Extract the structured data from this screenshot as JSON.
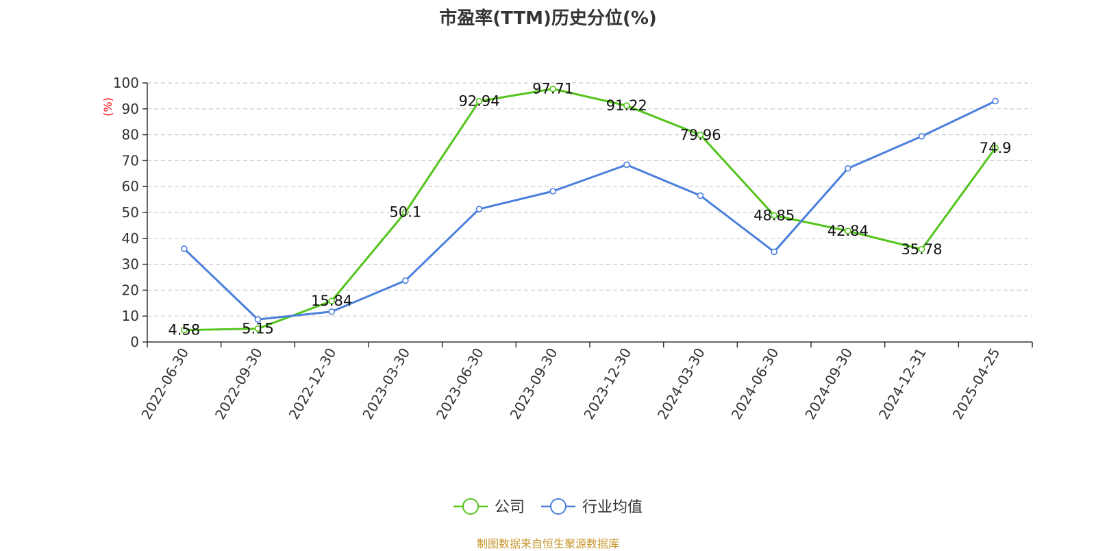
{
  "chart_data": {
    "type": "line",
    "title": "市盈率(TTM)历史分位(%)",
    "ylabel": "(%)",
    "xlabel": "",
    "ylim": [
      0,
      100
    ],
    "yticks": [
      0,
      10,
      20,
      30,
      40,
      50,
      60,
      70,
      80,
      90,
      100
    ],
    "grid": true,
    "legend_position": "bottom-center",
    "categories": [
      "2022-06-30",
      "2022-09-30",
      "2022-12-30",
      "2023-03-30",
      "2023-06-30",
      "2023-09-30",
      "2023-12-30",
      "2024-03-30",
      "2024-06-30",
      "2024-09-30",
      "2024-12-31",
      "2025-04-25"
    ],
    "series": [
      {
        "name": "公司",
        "color": "#52c41a",
        "values": [
          4.58,
          5.15,
          15.84,
          50.1,
          92.94,
          97.71,
          91.22,
          79.96,
          48.85,
          42.84,
          35.78,
          74.9
        ],
        "labels": [
          "4.58",
          "5.15",
          "15.84",
          "50.1",
          "92.94",
          "97.71",
          "91.22",
          "79.96",
          "48.85",
          "42.84",
          "35.78",
          "74.9"
        ]
      },
      {
        "name": "行业均值",
        "color": "#4a7fdc",
        "values": [
          36,
          8.7,
          11.7,
          23.7,
          51.3,
          58.2,
          68.4,
          56.5,
          34.8,
          67.0,
          79.4,
          93.0
        ]
      }
    ]
  },
  "footer": {
    "source": "制图数据来自恒生聚源数据库"
  },
  "colors": {
    "axis": "#333333",
    "grid": "#cccccc",
    "ylabel": "#ff0000",
    "source": "#c8962e"
  }
}
